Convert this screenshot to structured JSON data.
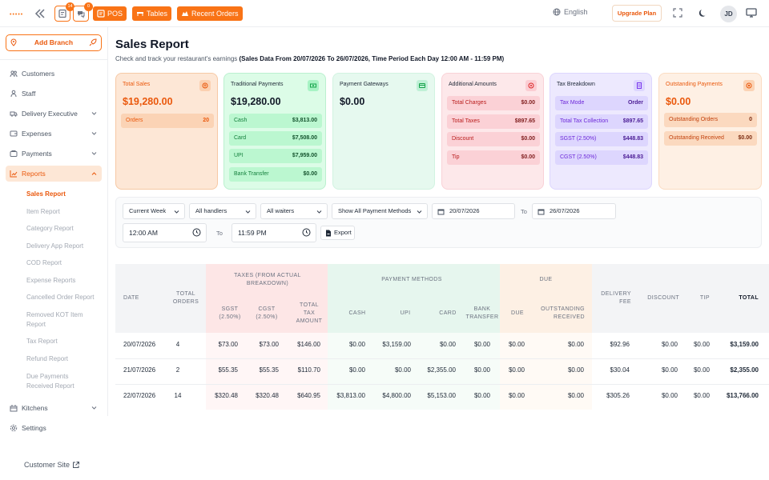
{
  "topbar": {
    "logo_dots": "•••••",
    "kot_badge": "14",
    "orders_badge": "0",
    "pos_label": "POS",
    "tables_label": "Tables",
    "recent_orders_label": "Recent Orders",
    "language": "English",
    "upgrade_label": "Upgrade Plan",
    "avatar_initials": "JD"
  },
  "sidebar": {
    "add_branch": "Add Branch",
    "items": [
      {
        "label": "Customers",
        "icon": "users-icon"
      },
      {
        "label": "Staff",
        "icon": "staff-icon"
      },
      {
        "label": "Delivery Executive",
        "icon": "delivery-icon"
      },
      {
        "label": "Expenses",
        "icon": "expenses-icon"
      },
      {
        "label": "Payments",
        "icon": "payments-icon"
      },
      {
        "label": "Reports",
        "icon": "reports-icon"
      },
      {
        "label": "Kitchens",
        "icon": "kitchen-icon"
      },
      {
        "label": "Settings",
        "icon": "settings-icon"
      }
    ],
    "report_sub": [
      "Sales Report",
      "Item Report",
      "Category Report",
      "Delivery App Report",
      "COD Report",
      "Expense Reports",
      "Cancelled Order Report",
      "Removed KOT Item Report",
      "Tax Report",
      "Refund Report",
      "Due Payments Received Report"
    ],
    "customer_site": "Customer Site"
  },
  "page": {
    "title": "Sales Report",
    "subtitle": "Check and track your restaurant's earnings",
    "subtitle_bold": "(Sales Data From 20/07/2026 To 26/07/2026, Time Period Each Day 12:00 AM - 11:59 PM)"
  },
  "cards": {
    "total_sales": {
      "title": "Total Sales",
      "value": "$19,280.00",
      "rows": [
        {
          "label": "Orders",
          "value": "20"
        }
      ]
    },
    "traditional": {
      "title": "Traditional Payments",
      "value": "$19,280.00",
      "rows": [
        {
          "label": "Cash",
          "value": "$3,813.00"
        },
        {
          "label": "Card",
          "value": "$7,508.00"
        },
        {
          "label": "UPI",
          "value": "$7,959.00"
        },
        {
          "label": "Bank Transfer",
          "value": "$0.00"
        }
      ]
    },
    "gateways": {
      "title": "Payment Gateways",
      "value": "$0.00"
    },
    "additional": {
      "title": "Additional Amounts",
      "rows": [
        {
          "label": "Total Charges",
          "value": "$0.00"
        },
        {
          "label": "Total Taxes",
          "value": "$897.65"
        },
        {
          "label": "Discount",
          "value": "$0.00"
        },
        {
          "label": "Tip",
          "value": "$0.00"
        }
      ]
    },
    "tax": {
      "title": "Tax Breakdown",
      "rows": [
        {
          "label": "Tax Mode",
          "value": "Order"
        },
        {
          "label": "Total Tax Collection",
          "value": "$897.65"
        },
        {
          "label": "SGST (2.50%)",
          "value": "$448.83"
        },
        {
          "label": "CGST (2.50%)",
          "value": "$448.83"
        }
      ]
    },
    "outstanding": {
      "title": "Outstanding Payments",
      "value": "$0.00",
      "rows": [
        {
          "label": "Outstanding Orders",
          "value": "0"
        },
        {
          "label": "Outstanding Received",
          "value": "$0.00"
        }
      ]
    }
  },
  "filters": {
    "period": "Current Week",
    "handlers": "All handlers",
    "waiters": "All waiters",
    "payment_methods": "Show All Payment Methods",
    "date_from": "20/07/2026",
    "to_label": "To",
    "date_to": "26/07/2026",
    "time_from": "12:00 AM",
    "time_to": "11:59 PM",
    "export_label": "Export"
  },
  "table": {
    "group_headers": {
      "taxes": "TAXES (FROM ACTUAL BREAKDOWN)",
      "payment_methods": "PAYMENT METHODS",
      "due": "DUE"
    },
    "columns": [
      "DATE",
      "TOTAL ORDERS",
      "SGST (2.50%)",
      "CGST (2.50%)",
      "TOTAL TAX AMOUNT",
      "CASH",
      "UPI",
      "CARD",
      "BANK TRANSFER",
      "DUE",
      "OUTSTANDING RECEIVED",
      "DELIVERY FEE",
      "DISCOUNT",
      "TIP",
      "TOTAL"
    ],
    "rows": [
      [
        "20/07/2026",
        "4",
        "$73.00",
        "$73.00",
        "$146.00",
        "$0.00",
        "$3,159.00",
        "$0.00",
        "$0.00",
        "$0.00",
        "$0.00",
        "$92.96",
        "$0.00",
        "$0.00",
        "$3,159.00"
      ],
      [
        "21/07/2026",
        "2",
        "$55.35",
        "$55.35",
        "$110.70",
        "$0.00",
        "$0.00",
        "$2,355.00",
        "$0.00",
        "$0.00",
        "$0.00",
        "$30.04",
        "$0.00",
        "$0.00",
        "$2,355.00"
      ],
      [
        "22/07/2026",
        "14",
        "$320.48",
        "$320.48",
        "$640.95",
        "$3,813.00",
        "$4,800.00",
        "$5,153.00",
        "$0.00",
        "$0.00",
        "$0.00",
        "$305.26",
        "$0.00",
        "$0.00",
        "$13,766.00"
      ]
    ]
  },
  "colors": {
    "accent": "#f97316",
    "sales_card": "#fde7d6",
    "traditional_card": "#dcfce7",
    "gateway_card": "#e6f9ef",
    "additional_card": "#fde8ea",
    "tax_card": "#ede9fe",
    "outstanding_card": "#fef0e4"
  }
}
